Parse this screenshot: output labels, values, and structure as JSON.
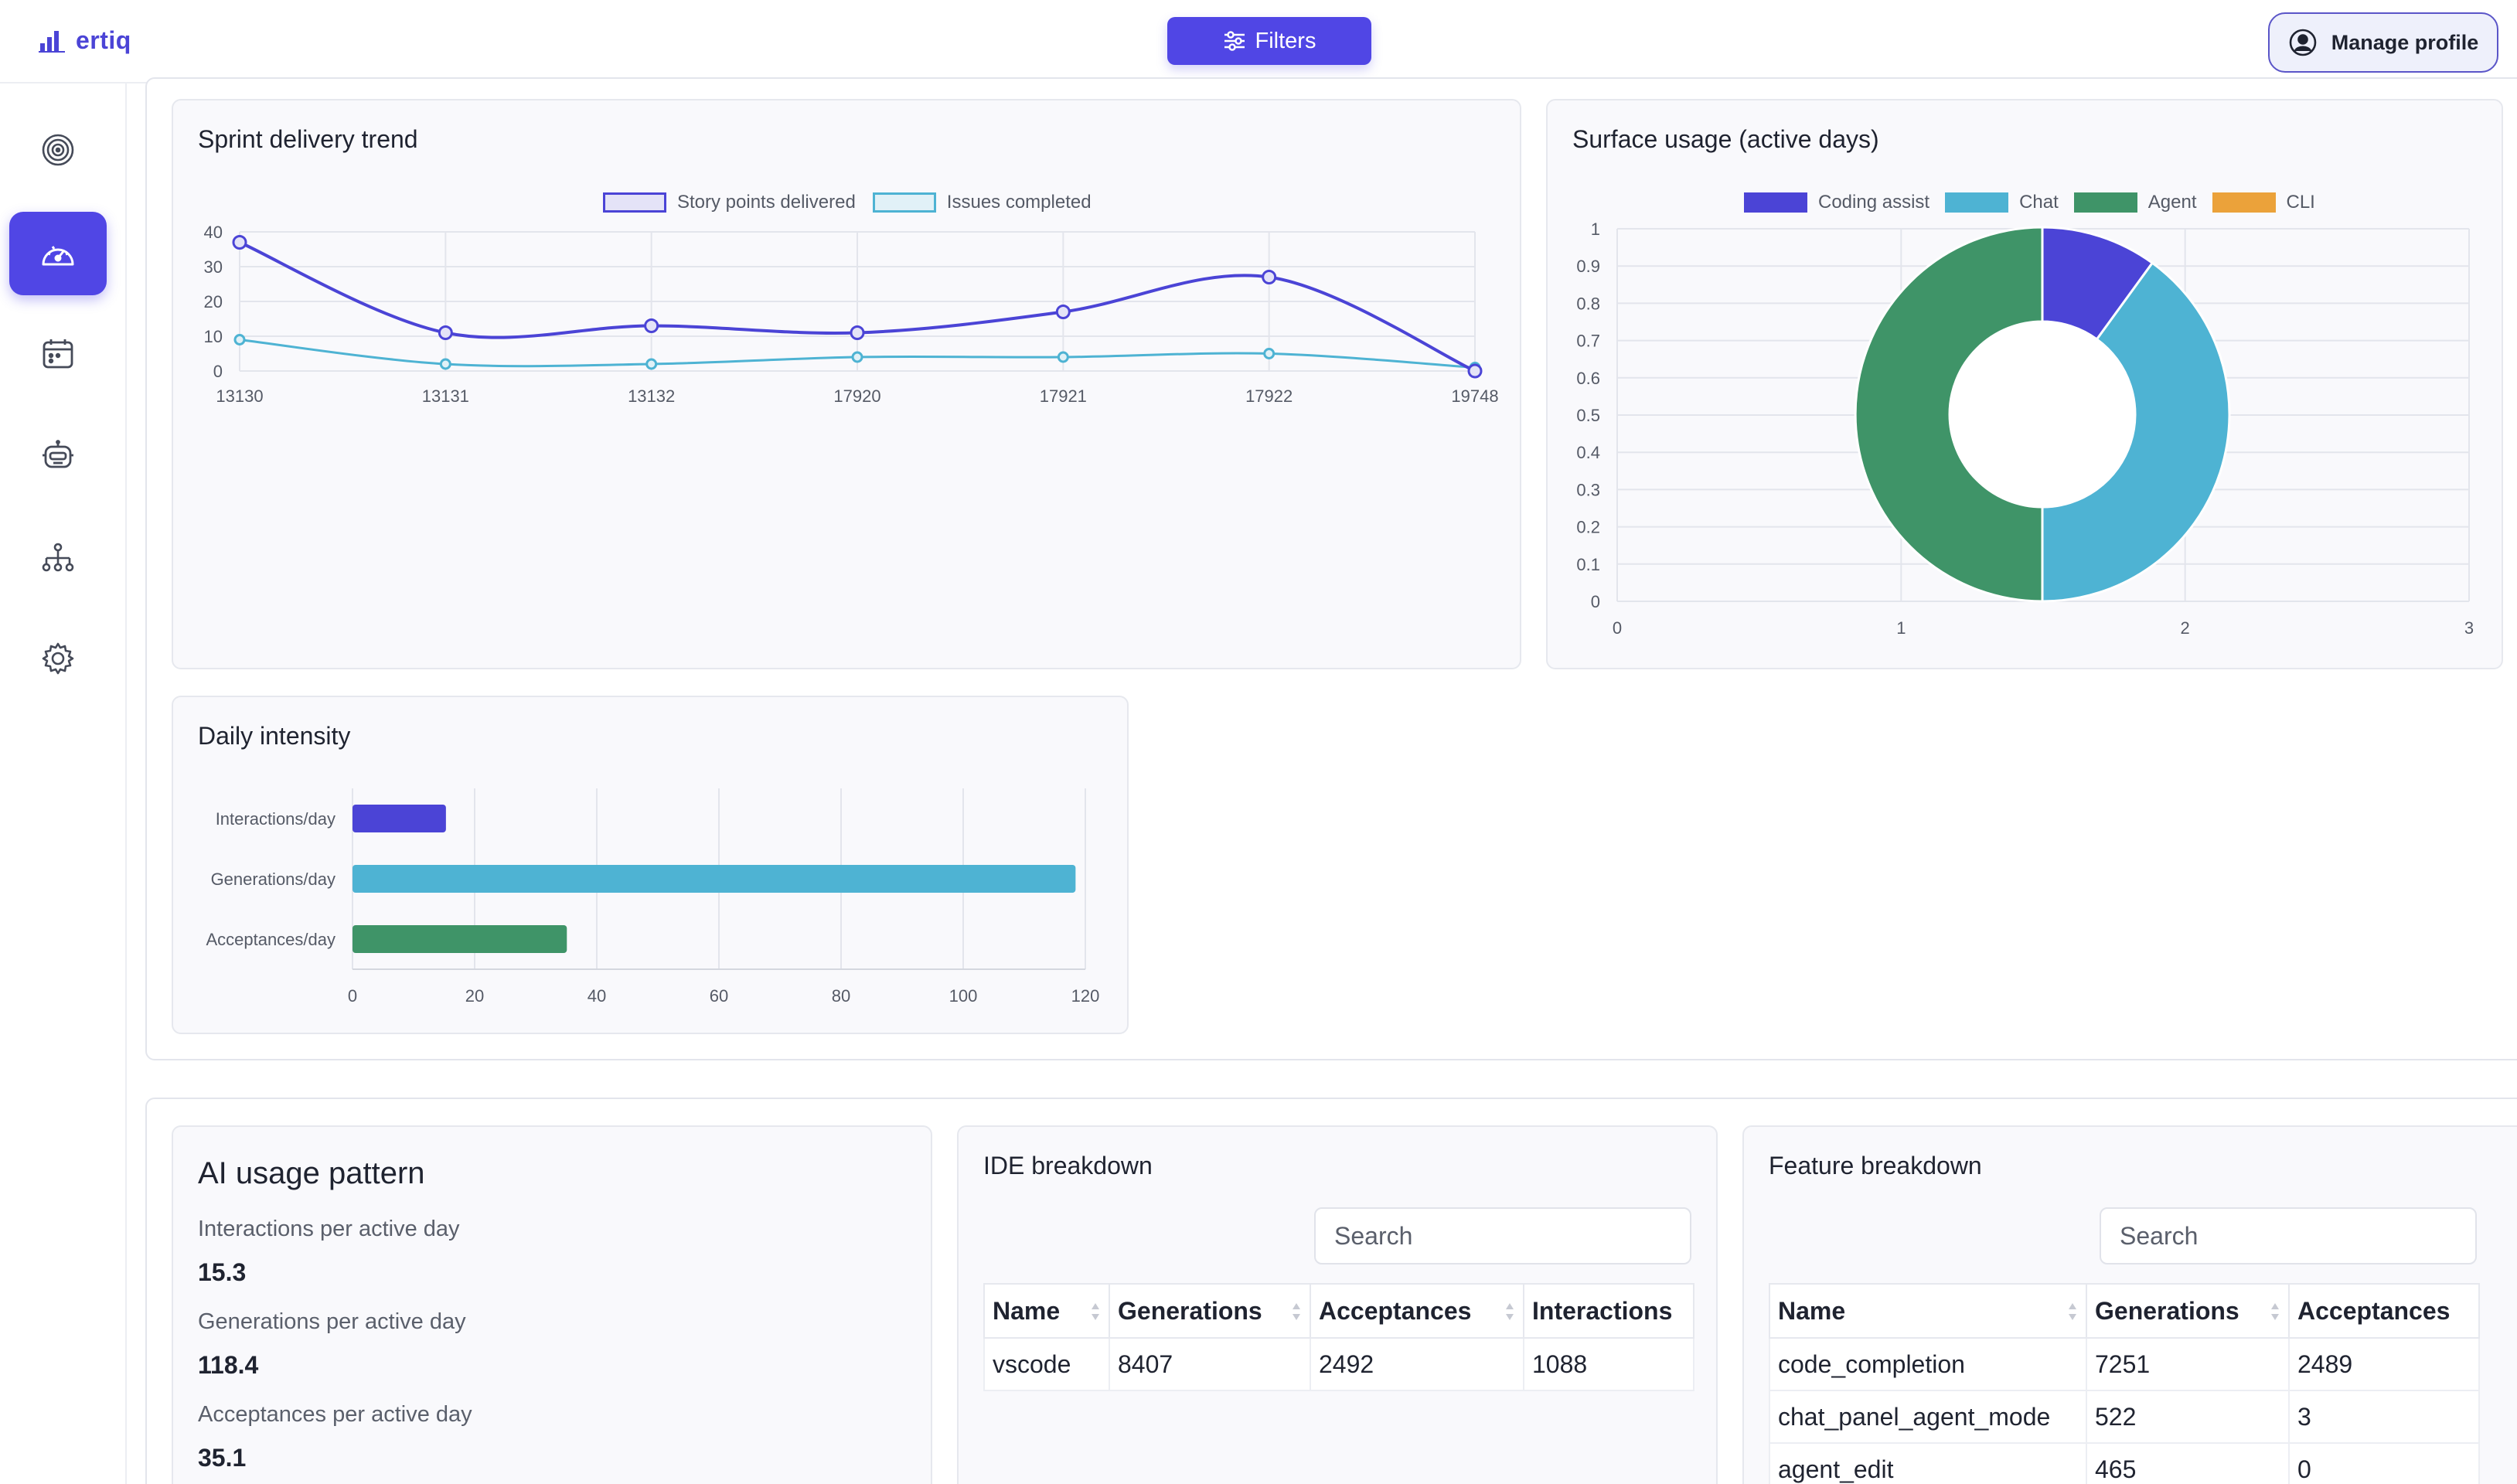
{
  "app": {
    "logo_text": "ertiq"
  },
  "header": {
    "filters_label": "Filters",
    "manage_profile_label": "Manage profile"
  },
  "sidebar": {
    "items": [
      {
        "name": "target",
        "active": false
      },
      {
        "name": "dashboard",
        "active": true
      },
      {
        "name": "calendar",
        "active": false
      },
      {
        "name": "robot",
        "active": false
      },
      {
        "name": "org-tree",
        "active": false
      },
      {
        "name": "settings",
        "active": false
      }
    ]
  },
  "sprint_chart": {
    "title": "Sprint delivery trend",
    "chart_data": {
      "type": "line",
      "categories": [
        "13130",
        "13131",
        "13132",
        "17920",
        "17921",
        "17922",
        "19748"
      ],
      "series": [
        {
          "name": "Story points delivered",
          "color": "#4b44d6",
          "values": [
            37,
            11,
            13,
            11,
            17,
            27,
            0
          ]
        },
        {
          "name": "Issues completed",
          "color": "#4eb3d3",
          "values": [
            9,
            2,
            2,
            4,
            4,
            5,
            1
          ]
        }
      ],
      "ylim": [
        0,
        40
      ],
      "yticks": [
        0,
        10,
        20,
        30,
        40
      ],
      "legend": "top-center",
      "grid": true
    }
  },
  "surface_chart": {
    "title": "Surface usage (active days)",
    "chart_data": {
      "type": "pie",
      "donut": true,
      "labels": [
        "Coding assist",
        "Chat",
        "Agent",
        "CLI"
      ],
      "values": [
        0.1,
        0.4,
        0.5,
        0
      ],
      "colors": [
        "#4b44d6",
        "#4eb3d3",
        "#3f9468",
        "#eba23a"
      ],
      "yticks": [
        "0",
        "0.1",
        "0.2",
        "0.3",
        "0.4",
        "0.5",
        "0.6",
        "0.7",
        "0.8",
        "0.9",
        "1"
      ],
      "xticks": [
        "0",
        "1",
        "2",
        "3"
      ],
      "legend": "top-center",
      "grid": true
    }
  },
  "intensity_chart": {
    "title": "Daily intensity",
    "chart_data": {
      "type": "bar",
      "orientation": "horizontal",
      "categories": [
        "Interactions/day",
        "Generations/day",
        "Acceptances/day"
      ],
      "values": [
        15.3,
        118.4,
        35.1
      ],
      "colors": [
        "#4b44d6",
        "#4eb3d3",
        "#3f9468"
      ],
      "xlim": [
        0,
        120
      ],
      "xticks": [
        0,
        20,
        40,
        60,
        80,
        100,
        120
      ],
      "grid": true
    }
  },
  "ai_usage": {
    "title": "AI usage pattern",
    "metrics": [
      {
        "label": "Interactions per active day",
        "value": "15.3"
      },
      {
        "label": "Generations per active day",
        "value": "118.4"
      },
      {
        "label": "Acceptances per active day",
        "value": "35.1"
      }
    ]
  },
  "ide_breakdown": {
    "title": "IDE breakdown",
    "search_placeholder": "Search",
    "columns": [
      "Name",
      "Generations",
      "Acceptances",
      "Interactions"
    ],
    "rows": [
      [
        "vscode",
        "8407",
        "2492",
        "1088"
      ]
    ]
  },
  "feature_breakdown": {
    "title": "Feature breakdown",
    "search_placeholder": "Search",
    "columns": [
      "Name",
      "Generations",
      "Acceptances"
    ],
    "rows": [
      [
        "code_completion",
        "7251",
        "2489"
      ],
      [
        "chat_panel_agent_mode",
        "522",
        "3"
      ],
      [
        "agent_edit",
        "465",
        "0"
      ]
    ]
  }
}
